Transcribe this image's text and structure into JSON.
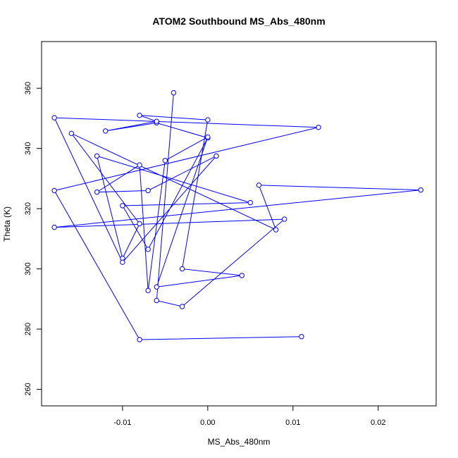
{
  "chart_data": {
    "type": "line",
    "title": "ATOM2 Southbound MS_Abs_480nm",
    "xlabel": "MS_Abs_480nm",
    "ylabel": "Theta (K)",
    "xlim": [
      -0.0195,
      0.0268
    ],
    "ylim": [
      254.5,
      375.5
    ],
    "x_ticks": [
      -0.01,
      0.0,
      0.01,
      0.02
    ],
    "x_tick_labels": [
      "-0.01",
      "0.00",
      "0.01",
      "0.02"
    ],
    "y_ticks": [
      260,
      280,
      300,
      320,
      340,
      360
    ],
    "y_tick_labels": [
      "260",
      "280",
      "300",
      "320",
      "340",
      "360"
    ],
    "grid": false,
    "legend": "none",
    "marker": "open-circle",
    "color": "#0000ff",
    "series": [
      {
        "x": [
          -0.004,
          -0.006,
          -0.003,
          0.009,
          -0.018,
          0.025,
          0.006,
          0.008,
          -0.016,
          -0.008,
          -0.01,
          -0.013,
          0.005,
          -0.01,
          -0.007,
          0.0,
          -0.006,
          -0.012,
          -0.006,
          -0.008,
          0.0,
          -0.003,
          0.004,
          -0.006,
          0.0,
          -0.005,
          -0.007,
          -0.008,
          -0.013,
          -0.007,
          0.001,
          -0.01,
          -0.018,
          0.013,
          -0.018,
          -0.008,
          0.011
        ],
        "y": [
          358.5,
          289.5,
          287.5,
          316.5,
          313.8,
          326.2,
          327.8,
          313.0,
          345.0,
          315.0,
          303.5,
          337.5,
          322.0,
          321.0,
          306.5,
          343.5,
          348.5,
          345.8,
          349.0,
          351.0,
          349.5,
          300.0,
          297.8,
          294.0,
          343.8,
          336.0,
          292.8,
          334.5,
          325.5,
          326.0,
          337.5,
          302.2,
          350.2,
          347.0,
          326.0,
          276.5,
          277.5
        ]
      }
    ]
  }
}
